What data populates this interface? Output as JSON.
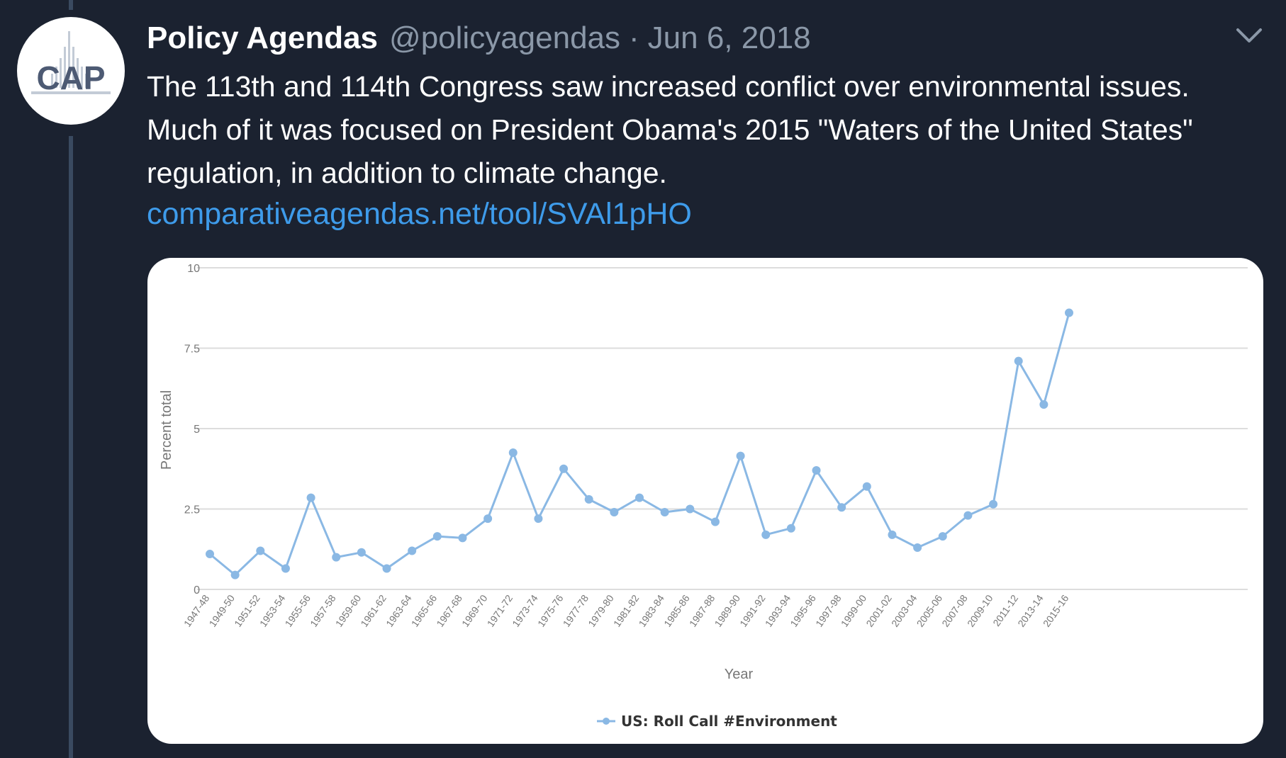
{
  "tweet": {
    "display_name": "Policy Agendas",
    "handle": "@policyagendas",
    "separator": "·",
    "date": "Jun 6, 2018",
    "text": "The 113th and 114th Congress saw increased conflict over environmental issues. Much of it was focused on President Obama's 2015 \"Waters of the United States\" regulation, in addition to climate change.",
    "link": "comparativeagendas.net/tool/SVAl1pHO",
    "avatar_logo_text": "CAP",
    "menu_icon": "chevron-down-icon"
  },
  "colors": {
    "background": "#1b2230",
    "link": "#3e9bea",
    "series": "#8ab8e4",
    "grid": "#dddddd"
  },
  "chart_data": {
    "type": "line",
    "xlabel": "Year",
    "ylabel": "Percent total",
    "ylim": [
      0,
      10
    ],
    "yticks": [
      "0",
      "2.5",
      "5",
      "7.5",
      "10"
    ],
    "grid": true,
    "legend_position": "bottom-center",
    "categories": [
      "1947-48",
      "1949-50",
      "1951-52",
      "1953-54",
      "1955-56",
      "1957-58",
      "1959-60",
      "1961-62",
      "1963-64",
      "1965-66",
      "1967-68",
      "1969-70",
      "1971-72",
      "1973-74",
      "1975-76",
      "1977-78",
      "1979-80",
      "1981-82",
      "1983-84",
      "1985-86",
      "1987-88",
      "1989-90",
      "1991-92",
      "1993-94",
      "1995-96",
      "1997-98",
      "1999-00",
      "2001-02",
      "2003-04",
      "2005-06",
      "2007-08",
      "2009-10",
      "2011-12",
      "2013-14",
      "2015-16"
    ],
    "series": [
      {
        "name": "US: Roll Call #Environment",
        "values": [
          1.1,
          0.45,
          1.2,
          0.65,
          2.85,
          1.0,
          1.15,
          0.65,
          1.2,
          1.65,
          1.6,
          2.2,
          4.25,
          2.2,
          3.75,
          2.8,
          2.4,
          2.85,
          2.4,
          2.5,
          2.1,
          4.15,
          1.7,
          1.9,
          3.7,
          2.55,
          3.2,
          1.7,
          1.3,
          1.65,
          2.3,
          2.65,
          7.1,
          5.75,
          8.6
        ]
      }
    ]
  }
}
